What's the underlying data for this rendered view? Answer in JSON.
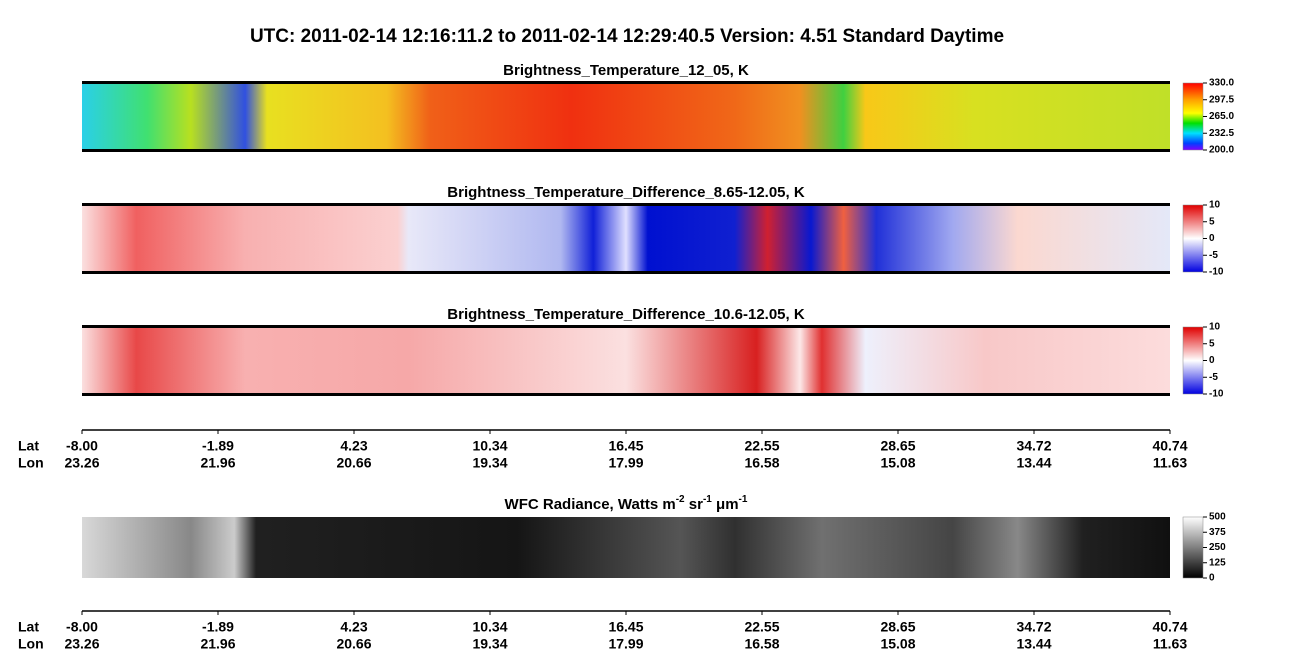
{
  "header": {
    "title": "UTC:  2011-02-14   12:16:11.2  to  2011-02-14   12:29:40.5    Version: 4.51  Standard Daytime"
  },
  "panels": [
    {
      "title": [
        {
          "text": "Brightness_Temperature_12_05, K",
          "sup": false
        }
      ],
      "colorbar": [
        "330.0",
        "297.5",
        "265.0",
        "232.5",
        "200.0"
      ]
    },
    {
      "title": [
        {
          "text": "Brightness_Temperature_Difference_8.65-12.05, K",
          "sup": false
        }
      ],
      "colorbar": [
        "10",
        "5",
        "0",
        "-5",
        "-10"
      ]
    },
    {
      "title": [
        {
          "text": "Brightness_Temperature_Difference_10.6-12.05, K",
          "sup": false
        }
      ],
      "colorbar": [
        "10",
        "5",
        "0",
        "-5",
        "-10"
      ]
    },
    {
      "title": [
        {
          "text": "WFC Radiance, Watts m",
          "sup": false
        },
        {
          "text": "-2",
          "sup": true
        },
        {
          "text": " sr",
          "sup": false
        },
        {
          "text": "-1",
          "sup": true
        },
        {
          "text": " μm",
          "sup": false
        },
        {
          "text": "-1",
          "sup": true
        }
      ],
      "colorbar": [
        "500",
        "375",
        "250",
        "125",
        "0"
      ]
    }
  ],
  "axes": [
    {
      "lat_name": "Lat",
      "lon_name": "Lon",
      "lat": [
        "-8.00",
        "-1.89",
        "4.23",
        "10.34",
        "16.45",
        "22.55",
        "28.65",
        "34.72",
        "40.74"
      ],
      "lon": [
        "23.26",
        "21.96",
        "20.66",
        "19.34",
        "17.99",
        "16.58",
        "15.08",
        "13.44",
        "11.63"
      ]
    },
    {
      "lat_name": "Lat",
      "lon_name": "Lon",
      "lat": [
        "-8.00",
        "-1.89",
        "4.23",
        "10.34",
        "16.45",
        "22.55",
        "28.65",
        "34.72",
        "40.74"
      ],
      "lon": [
        "23.26",
        "21.96",
        "20.66",
        "19.34",
        "17.99",
        "16.58",
        "15.08",
        "13.44",
        "11.63"
      ]
    }
  ]
}
